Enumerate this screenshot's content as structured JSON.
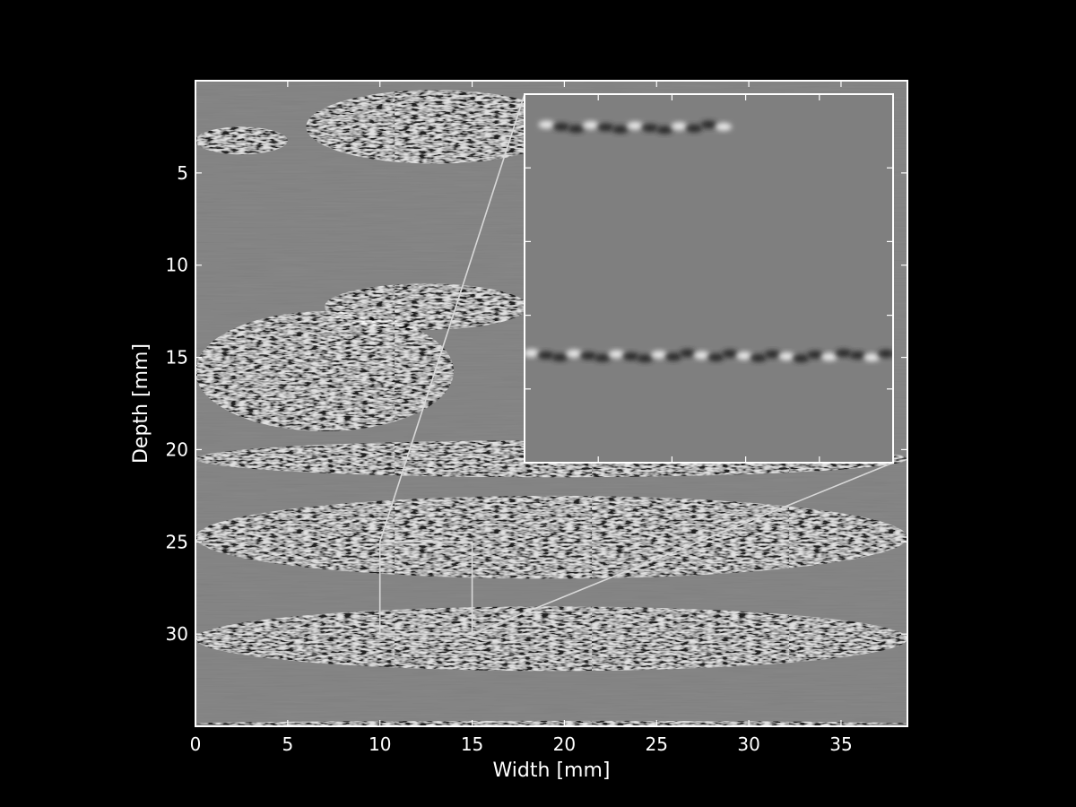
{
  "chart_data": {
    "type": "heatmap",
    "description_kind": "grayscale ultrasound B-mode image with zoom inset",
    "title": "",
    "xlabel": "Width [mm]",
    "ylabel": "Depth [mm]",
    "xlim": [
      0,
      38.6
    ],
    "ylim": [
      35,
      0
    ],
    "y_inverted": true,
    "xticks": [
      0,
      5,
      10,
      15,
      20,
      25,
      30,
      35
    ],
    "yticks": [
      5,
      10,
      15,
      20,
      25,
      30
    ],
    "colormap": "gray",
    "grid": false,
    "legend": "none",
    "colors": {
      "figure_background": "#000000",
      "image_mid_gray": "#7f7f7f",
      "frame": "#ffffff",
      "zoom_lines": "#d8d8d8"
    },
    "echo_bands": [
      {
        "x": [
          0,
          5
        ],
        "depth": [
          2.5,
          4
        ]
      },
      {
        "x": [
          6,
          20
        ],
        "depth": [
          0.5,
          4.5
        ]
      },
      {
        "x": [
          7,
          18
        ],
        "depth": [
          11,
          13.5
        ]
      },
      {
        "x": [
          0,
          14
        ],
        "depth": [
          12.5,
          19
        ]
      },
      {
        "x": [
          0,
          38.6
        ],
        "depth": [
          19.5,
          21.5
        ]
      },
      {
        "x": [
          0,
          38.6
        ],
        "depth": [
          22.5,
          27
        ]
      },
      {
        "x": [
          0,
          38.6
        ],
        "depth": [
          28.5,
          32
        ]
      },
      {
        "x": [
          0,
          38.6
        ],
        "depth": [
          34.7,
          35
        ]
      }
    ],
    "zoom_region": {
      "x": [
        10,
        15
      ],
      "depth": [
        25,
        30
      ]
    },
    "inset": {
      "shows_region": {
        "x": [
          10,
          15
        ],
        "depth": [
          25,
          30
        ]
      },
      "echo_features": [
        {
          "x": [
            10.2,
            12.8
          ],
          "depth": [
            25.3,
            25.6
          ]
        },
        {
          "x": [
            10.0,
            15.0
          ],
          "depth": [
            28.3,
            28.8
          ]
        }
      ]
    }
  }
}
